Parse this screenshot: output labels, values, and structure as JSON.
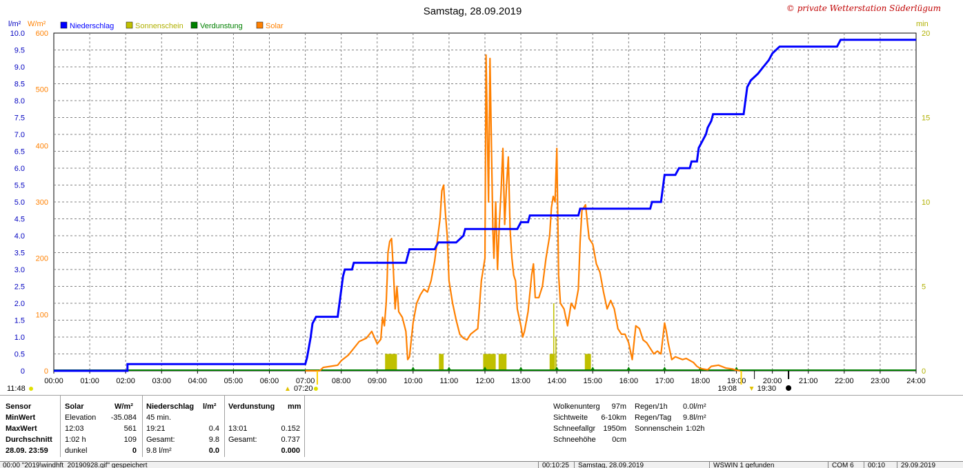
{
  "title": "Samstag, 28.09.2019",
  "copyright": "© private Wetterstation Süderlügum",
  "legend": [
    {
      "label": "Niederschlag",
      "color": "#0000ff"
    },
    {
      "label": "Sonnenschein",
      "color": "#c0c000"
    },
    {
      "label": "Verdunstung",
      "color": "#008000"
    },
    {
      "label": "Solar",
      "color": "#ff8000"
    }
  ],
  "axis_units": {
    "left1": "l/m²",
    "left2": "W/m²",
    "right": "min"
  },
  "chart_data": {
    "type": "line",
    "x_ticks": [
      "00:00",
      "01:00",
      "02:00",
      "03:00",
      "04:00",
      "05:00",
      "06:00",
      "07:00",
      "08:00",
      "09:00",
      "10:00",
      "11:00",
      "12:00",
      "13:00",
      "14:00",
      "15:00",
      "16:00",
      "17:00",
      "18:00",
      "19:00",
      "20:00",
      "21:00",
      "22:00",
      "23:00",
      "24:00"
    ],
    "y_left_precip_ticks": [
      "0",
      "0.5",
      "1.0",
      "1.5",
      "2.0",
      "2.5",
      "3.0",
      "3.5",
      "4.0",
      "4.5",
      "5.0",
      "5.5",
      "6.0",
      "6.5",
      "7.0",
      "7.5",
      "8.0",
      "8.5",
      "9.0",
      "9.5",
      "10.0"
    ],
    "y_left_solar_ticks": [
      "0",
      "100",
      "200",
      "300",
      "400",
      "500",
      "600"
    ],
    "y_right_ticks": [
      "0",
      "5",
      "10",
      "15",
      "20"
    ],
    "ylim_precip": [
      0,
      10
    ],
    "ylim_solar": [
      0,
      600
    ],
    "ylim_minutes": [
      0,
      20
    ],
    "grid": true,
    "legend_placement": "top-left",
    "series": [
      {
        "name": "Niederschlag",
        "color": "#0000ff",
        "points": [
          [
            0,
            0
          ],
          [
            2.05,
            0
          ],
          [
            2.05,
            0.2
          ],
          [
            7.0,
            0.2
          ],
          [
            7.05,
            0.4
          ],
          [
            7.1,
            0.7
          ],
          [
            7.15,
            1.0
          ],
          [
            7.2,
            1.4
          ],
          [
            7.3,
            1.6
          ],
          [
            7.4,
            1.6
          ],
          [
            7.9,
            1.6
          ],
          [
            7.95,
            2.0
          ],
          [
            8.0,
            2.4
          ],
          [
            8.05,
            2.8
          ],
          [
            8.1,
            3.0
          ],
          [
            8.3,
            3.0
          ],
          [
            8.35,
            3.2
          ],
          [
            9.8,
            3.2
          ],
          [
            9.9,
            3.6
          ],
          [
            10.6,
            3.6
          ],
          [
            10.7,
            3.8
          ],
          [
            11.2,
            3.8
          ],
          [
            11.4,
            4.0
          ],
          [
            11.45,
            4.2
          ],
          [
            12.9,
            4.2
          ],
          [
            13.0,
            4.4
          ],
          [
            13.2,
            4.4
          ],
          [
            13.25,
            4.6
          ],
          [
            14.6,
            4.6
          ],
          [
            14.65,
            4.8
          ],
          [
            15.2,
            4.8
          ],
          [
            16.6,
            4.8
          ],
          [
            16.65,
            5.0
          ],
          [
            16.9,
            5.0
          ],
          [
            16.95,
            5.4
          ],
          [
            17.0,
            5.8
          ],
          [
            17.3,
            5.8
          ],
          [
            17.4,
            6.0
          ],
          [
            17.7,
            6.0
          ],
          [
            17.75,
            6.2
          ],
          [
            17.9,
            6.2
          ],
          [
            17.95,
            6.6
          ],
          [
            18.05,
            6.8
          ],
          [
            18.15,
            7.0
          ],
          [
            18.2,
            7.2
          ],
          [
            18.3,
            7.4
          ],
          [
            18.35,
            7.6
          ],
          [
            19.2,
            7.6
          ],
          [
            19.25,
            8.0
          ],
          [
            19.3,
            8.4
          ],
          [
            19.4,
            8.6
          ],
          [
            19.6,
            8.8
          ],
          [
            19.75,
            9.0
          ],
          [
            19.9,
            9.2
          ],
          [
            20.0,
            9.4
          ],
          [
            20.2,
            9.6
          ],
          [
            21.8,
            9.6
          ],
          [
            21.9,
            9.8
          ],
          [
            24,
            9.8
          ]
        ]
      },
      {
        "name": "Solar",
        "color": "#ff8000",
        "points": [
          [
            7.0,
            0
          ],
          [
            7.4,
            0
          ],
          [
            7.5,
            6
          ],
          [
            7.7,
            8
          ],
          [
            7.9,
            10
          ],
          [
            8.0,
            18
          ],
          [
            8.2,
            28
          ],
          [
            8.5,
            52
          ],
          [
            8.7,
            58
          ],
          [
            8.85,
            70
          ],
          [
            9.0,
            48
          ],
          [
            9.1,
            56
          ],
          [
            9.15,
            95
          ],
          [
            9.2,
            80
          ],
          [
            9.25,
            120
          ],
          [
            9.28,
            165
          ],
          [
            9.3,
            210
          ],
          [
            9.35,
            230
          ],
          [
            9.4,
            235
          ],
          [
            9.45,
            180
          ],
          [
            9.5,
            110
          ],
          [
            9.55,
            150
          ],
          [
            9.6,
            105
          ],
          [
            9.7,
            95
          ],
          [
            9.8,
            70
          ],
          [
            9.85,
            20
          ],
          [
            9.9,
            25
          ],
          [
            10.0,
            85
          ],
          [
            10.1,
            120
          ],
          [
            10.2,
            135
          ],
          [
            10.3,
            145
          ],
          [
            10.4,
            140
          ],
          [
            10.5,
            160
          ],
          [
            10.6,
            195
          ],
          [
            10.7,
            245
          ],
          [
            10.75,
            270
          ],
          [
            10.8,
            320
          ],
          [
            10.85,
            330
          ],
          [
            10.9,
            280
          ],
          [
            10.95,
            240
          ],
          [
            11.0,
            160
          ],
          [
            11.1,
            120
          ],
          [
            11.2,
            90
          ],
          [
            11.3,
            65
          ],
          [
            11.4,
            58
          ],
          [
            11.5,
            55
          ],
          [
            11.6,
            65
          ],
          [
            11.7,
            70
          ],
          [
            11.8,
            75
          ],
          [
            11.9,
            160
          ],
          [
            12.0,
            200
          ],
          [
            12.03,
            561
          ],
          [
            12.06,
            450
          ],
          [
            12.1,
            300
          ],
          [
            12.14,
            555
          ],
          [
            12.18,
            400
          ],
          [
            12.22,
            250
          ],
          [
            12.25,
            200
          ],
          [
            12.3,
            300
          ],
          [
            12.35,
            180
          ],
          [
            12.4,
            260
          ],
          [
            12.45,
            320
          ],
          [
            12.5,
            395
          ],
          [
            12.55,
            260
          ],
          [
            12.6,
            330
          ],
          [
            12.65,
            380
          ],
          [
            12.7,
            250
          ],
          [
            12.75,
            200
          ],
          [
            12.8,
            170
          ],
          [
            12.85,
            160
          ],
          [
            12.9,
            110
          ],
          [
            13.0,
            80
          ],
          [
            13.05,
            60
          ],
          [
            13.1,
            70
          ],
          [
            13.2,
            105
          ],
          [
            13.3,
            170
          ],
          [
            13.35,
            190
          ],
          [
            13.4,
            130
          ],
          [
            13.5,
            130
          ],
          [
            13.6,
            150
          ],
          [
            13.7,
            200
          ],
          [
            13.8,
            240
          ],
          [
            13.85,
            290
          ],
          [
            13.9,
            310
          ],
          [
            13.95,
            300
          ],
          [
            14.0,
            395
          ],
          [
            14.05,
            170
          ],
          [
            14.1,
            120
          ],
          [
            14.2,
            110
          ],
          [
            14.3,
            80
          ],
          [
            14.4,
            120
          ],
          [
            14.5,
            110
          ],
          [
            14.6,
            145
          ],
          [
            14.65,
            230
          ],
          [
            14.7,
            285
          ],
          [
            14.8,
            295
          ],
          [
            14.9,
            235
          ],
          [
            15.0,
            225
          ],
          [
            15.1,
            190
          ],
          [
            15.2,
            175
          ],
          [
            15.3,
            140
          ],
          [
            15.4,
            110
          ],
          [
            15.5,
            125
          ],
          [
            15.6,
            110
          ],
          [
            15.7,
            75
          ],
          [
            15.8,
            65
          ],
          [
            15.9,
            65
          ],
          [
            16.0,
            50
          ],
          [
            16.1,
            20
          ],
          [
            16.2,
            80
          ],
          [
            16.3,
            75
          ],
          [
            16.4,
            55
          ],
          [
            16.5,
            50
          ],
          [
            16.6,
            40
          ],
          [
            16.7,
            30
          ],
          [
            16.8,
            35
          ],
          [
            16.9,
            30
          ],
          [
            17.0,
            85
          ],
          [
            17.05,
            70
          ],
          [
            17.1,
            50
          ],
          [
            17.2,
            20
          ],
          [
            17.3,
            25
          ],
          [
            17.5,
            20
          ],
          [
            17.6,
            22
          ],
          [
            17.8,
            15
          ],
          [
            17.9,
            8
          ],
          [
            18.0,
            4
          ],
          [
            18.2,
            2
          ],
          [
            18.3,
            8
          ],
          [
            18.5,
            10
          ],
          [
            18.7,
            5
          ],
          [
            18.9,
            3
          ],
          [
            19.0,
            1
          ],
          [
            19.1,
            0
          ]
        ]
      },
      {
        "name": "Sonnenschein",
        "color": "#c0c000",
        "bars": [
          [
            9.22,
            9.55,
            1.0
          ],
          [
            10.72,
            10.85,
            1.0
          ],
          [
            11.95,
            12.3,
            1.0
          ],
          [
            12.38,
            12.6,
            1.0
          ],
          [
            13.8,
            13.95,
            1.0
          ],
          [
            13.9,
            13.93,
            4.0
          ],
          [
            13.96,
            13.99,
            2.0
          ],
          [
            14.78,
            14.95,
            1.0
          ]
        ]
      },
      {
        "name": "Verdunstung",
        "color": "#008000",
        "markers": [
          10.0,
          11.0,
          12.0,
          13.0,
          14.0,
          15.0,
          16.0,
          17.0,
          18.0,
          19.0
        ]
      }
    ]
  },
  "markers": {
    "left_time": "11:48",
    "sunrise": "07:20",
    "sunset": "19:08",
    "dusk": "19:30"
  },
  "stats": {
    "headers": {
      "sensor": "Sensor",
      "solar": "Solar",
      "solar_unit": "W/m²",
      "precip": "Niederschlag",
      "precip_unit": "l/m²",
      "evap": "Verdunstung",
      "evap_unit": "mm"
    },
    "rows": [
      {
        "label": "MinWert",
        "solar_a": "Elevation",
        "solar_b": "-35.084",
        "precip_a": "45 min.",
        "precip_b": "",
        "evap_a": "",
        "evap_b": ""
      },
      {
        "label": "MaxWert",
        "solar_a": "12:03",
        "solar_b": "561",
        "precip_a": "19:21",
        "precip_b": "0.4",
        "evap_a": "13:01",
        "evap_b": "0.152"
      },
      {
        "label": "Durchschnitt",
        "solar_a": "1:02 h",
        "solar_b": "109",
        "precip_a": "Gesamt:",
        "precip_b": "9.8",
        "evap_a": "Gesamt:",
        "evap_b": "0.737"
      },
      {
        "label": "28.09.  23:59",
        "solar_a": "dunkel",
        "solar_b": "0",
        "precip_a": "9.8 l/m²",
        "precip_b": "0.0",
        "evap_a": "",
        "evap_b": "0.000"
      }
    ],
    "extra1": [
      {
        "k": "Wolkenunterg",
        "v": "97m"
      },
      {
        "k": "Sichtweite",
        "v": "6-10km"
      },
      {
        "k": "Schneefallgr",
        "v": "1950m"
      },
      {
        "k": "Schneehöhe",
        "v": "0cm"
      }
    ],
    "extra2": [
      {
        "k": "Regen/1h",
        "v": "0.0l/m²"
      },
      {
        "k": "Regen/Tag",
        "v": "9.8l/m²"
      },
      {
        "k": "Sonnenschein",
        "v": "1:02h"
      }
    ]
  },
  "statusbar": {
    "file": "00:00  \"2019\\windhft_20190928.gif\" gespeichert",
    "time": "00:10:25",
    "date": "Samstag, 28.09.2019",
    "wswin": "WSWIN 1 gefunden",
    "com": "COM 6",
    "t2": "00:10",
    "d2": "29.09.2019"
  }
}
